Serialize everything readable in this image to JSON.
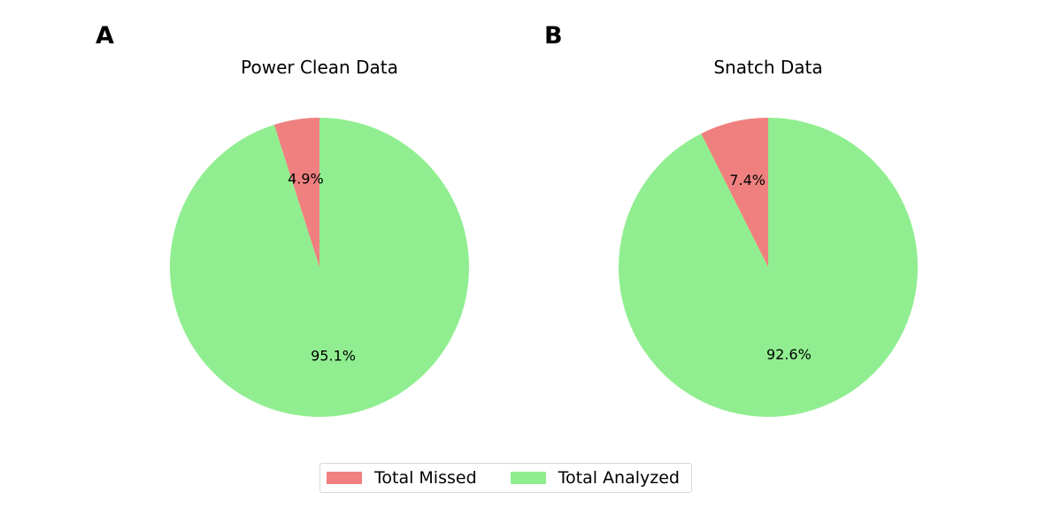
{
  "colors": {
    "missed": "#f08080",
    "analyzed": "#90ee90"
  },
  "legend": {
    "items": [
      {
        "label": "Total Missed",
        "color_key": "missed"
      },
      {
        "label": "Total Analyzed",
        "color_key": "analyzed"
      }
    ]
  },
  "chart_data": [
    {
      "type": "pie",
      "panel": "A",
      "title": "Power Clean Data",
      "labels": [
        "Total Missed",
        "Total Analyzed"
      ],
      "values": [
        4.9,
        95.1
      ],
      "value_labels": [
        "4.9%",
        "95.1%"
      ],
      "start_angle_deg": 90,
      "direction": "counterclockwise"
    },
    {
      "type": "pie",
      "panel": "B",
      "title": "Snatch Data",
      "labels": [
        "Total Missed",
        "Total Analyzed"
      ],
      "values": [
        7.4,
        92.6
      ],
      "value_labels": [
        "7.4%",
        "92.6%"
      ],
      "start_angle_deg": 90,
      "direction": "counterclockwise"
    }
  ]
}
